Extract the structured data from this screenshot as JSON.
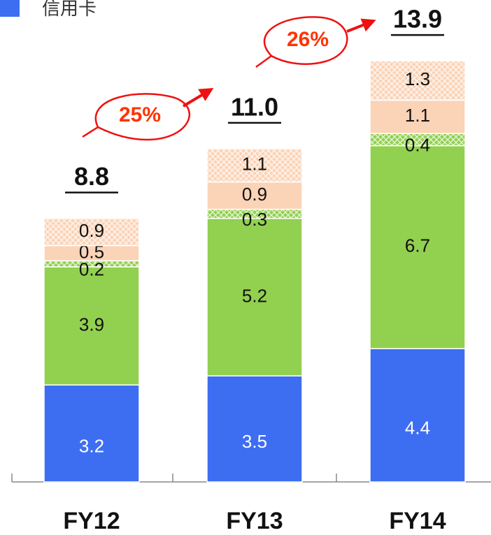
{
  "chart_data": {
    "type": "stacked_bar",
    "categories": [
      "FY12",
      "FY13",
      "FY14"
    ],
    "series": [
      {
        "name": "信用卡",
        "color": "#3d6ef2",
        "values": [
          3.2,
          3.5,
          4.4
        ]
      },
      {
        "color": "#92d050",
        "values": [
          3.9,
          5.2,
          6.7
        ]
      },
      {
        "color": "#92d050",
        "hatch": true,
        "values": [
          0.2,
          0.3,
          0.4
        ]
      },
      {
        "color": "#fbd3b6",
        "values": [
          0.5,
          0.9,
          1.1
        ]
      },
      {
        "color": "#fbd3b6",
        "hatch": true,
        "values": [
          0.9,
          1.1,
          1.3
        ]
      }
    ],
    "totals": {
      "values": [
        8.8,
        11,
        13.9
      ],
      "value_labels": [
        "8.8",
        "11.0",
        "13.9"
      ]
    },
    "annotations": [
      "25%",
      "26%"
    ],
    "ylim": [
      0,
      16
    ],
    "legend": "top-left"
  }
}
